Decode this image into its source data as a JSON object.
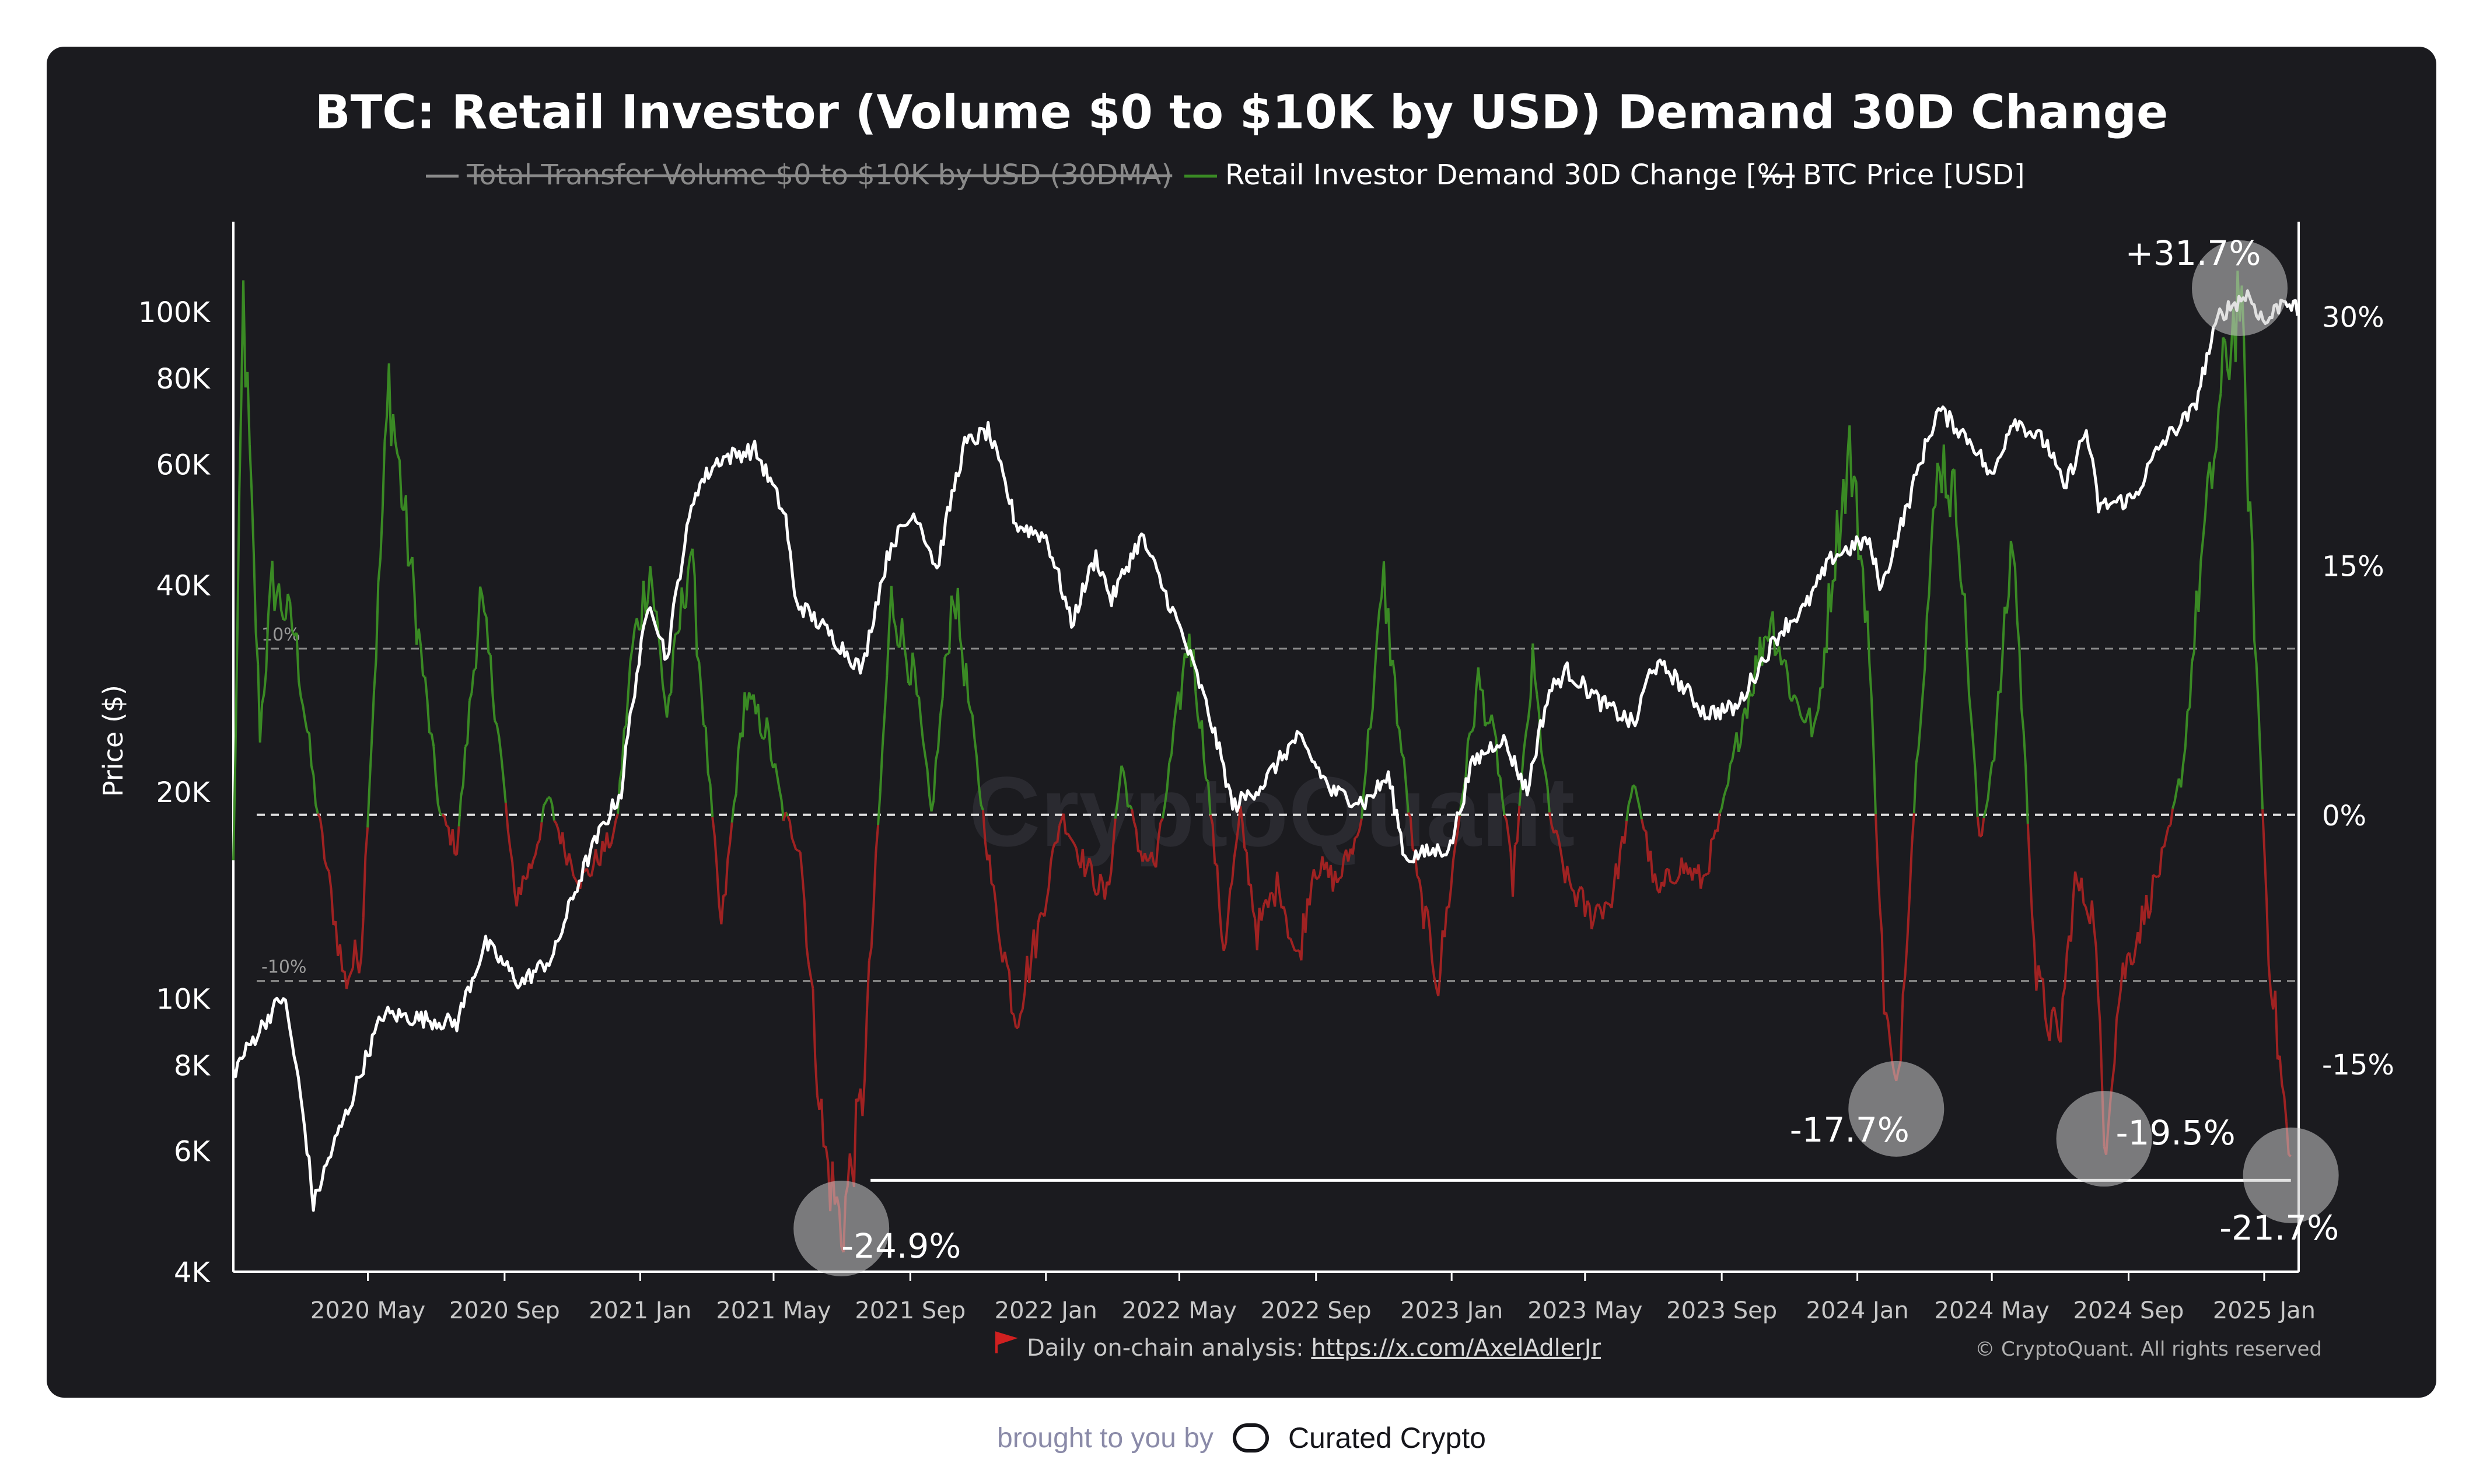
{
  "chart_data": {
    "type": "line",
    "title": "BTC: Retail Investor (Volume $0 to $10K by USD) Demand 30D Change",
    "legend": [
      {
        "label": "Total Transfer Volume $0 to $10K by USD (30DMA)",
        "color": "#8a8a8a",
        "hidden": true
      },
      {
        "label": "Retail Investor Demand 30D Change [%]",
        "color": "#3a8a24",
        "hidden": false
      },
      {
        "label": "BTC Price [USD]",
        "color": "#ffffff",
        "hidden": false
      }
    ],
    "ylabel_left": "Price ($)",
    "left_axis": {
      "scale": "log",
      "ylim": [
        4000,
        130000
      ],
      "ticks": [
        4000,
        6000,
        8000,
        10000,
        20000,
        40000,
        60000,
        80000,
        100000
      ],
      "tick_labels": [
        "4K",
        "6K",
        "8K",
        "10K",
        "20K",
        "40K",
        "60K",
        "80K",
        "100K"
      ]
    },
    "right_axis": {
      "scale": "linear",
      "ylim": [
        -27.5,
        35
      ],
      "ticks": [
        -15,
        0,
        15,
        30
      ],
      "tick_labels": [
        "-15%",
        "0%",
        "15%",
        "30%"
      ]
    },
    "x_axis": {
      "range": [
        "2020-01-01",
        "2025-02-01"
      ],
      "ticks": [
        {
          "date": "2020-05-01",
          "label": "2020 May"
        },
        {
          "date": "2020-09-01",
          "label": "2020 Sep"
        },
        {
          "date": "2021-01-01",
          "label": "2021 Jan"
        },
        {
          "date": "2021-05-01",
          "label": "2021 May"
        },
        {
          "date": "2021-09-01",
          "label": "2021 Sep"
        },
        {
          "date": "2022-01-01",
          "label": "2022 Jan"
        },
        {
          "date": "2022-05-01",
          "label": "2022 May"
        },
        {
          "date": "2022-09-01",
          "label": "2022 Sep"
        },
        {
          "date": "2023-01-01",
          "label": "2023 Jan"
        },
        {
          "date": "2023-05-01",
          "label": "2023 May"
        },
        {
          "date": "2023-09-01",
          "label": "2023 Sep"
        },
        {
          "date": "2024-01-01",
          "label": "2024 Jan"
        },
        {
          "date": "2024-05-01",
          "label": "2024 May"
        },
        {
          "date": "2024-09-01",
          "label": "2024 Sep"
        },
        {
          "date": "2025-01-01",
          "label": "2025 Jan"
        }
      ]
    },
    "reference_lines": [
      {
        "value": 10,
        "label": "10%"
      },
      {
        "value": -10,
        "label": "-10%"
      },
      {
        "value": 0,
        "label": ""
      }
    ],
    "series": [
      {
        "name": "BTC Price [USD]",
        "axis": "left",
        "color": "#ffffff",
        "points": [
          [
            "2020-01-01",
            7800
          ],
          [
            "2020-02-15",
            10100
          ],
          [
            "2020-03-13",
            5000
          ],
          [
            "2020-04-15",
            7000
          ],
          [
            "2020-05-15",
            9500
          ],
          [
            "2020-07-20",
            9200
          ],
          [
            "2020-08-15",
            12000
          ],
          [
            "2020-09-15",
            10500
          ],
          [
            "2020-10-15",
            11500
          ],
          [
            "2020-11-15",
            16000
          ],
          [
            "2020-12-15",
            20000
          ],
          [
            "2021-01-10",
            38000
          ],
          [
            "2021-01-25",
            31000
          ],
          [
            "2021-02-20",
            55000
          ],
          [
            "2021-03-13",
            61000
          ],
          [
            "2021-04-14",
            63000
          ],
          [
            "2021-05-12",
            50000
          ],
          [
            "2021-05-20",
            38000
          ],
          [
            "2021-06-20",
            34000
          ],
          [
            "2021-07-20",
            30000
          ],
          [
            "2021-08-15",
            46000
          ],
          [
            "2021-09-06",
            51000
          ],
          [
            "2021-09-25",
            42000
          ],
          [
            "2021-10-20",
            64000
          ],
          [
            "2021-11-10",
            67000
          ],
          [
            "2021-12-05",
            49000
          ],
          [
            "2022-01-01",
            47000
          ],
          [
            "2022-01-24",
            35000
          ],
          [
            "2022-02-15",
            44000
          ],
          [
            "2022-03-01",
            38000
          ],
          [
            "2022-03-28",
            47000
          ],
          [
            "2022-04-15",
            40000
          ],
          [
            "2022-05-15",
            30000
          ],
          [
            "2022-06-18",
            19000
          ],
          [
            "2022-07-15",
            20500
          ],
          [
            "2022-08-15",
            24000
          ],
          [
            "2022-09-15",
            20000
          ],
          [
            "2022-10-15",
            19300
          ],
          [
            "2022-11-05",
            21000
          ],
          [
            "2022-11-20",
            16000
          ],
          [
            "2022-12-31",
            16600
          ],
          [
            "2023-01-20",
            22000
          ],
          [
            "2023-02-15",
            24000
          ],
          [
            "2023-03-10",
            20000
          ],
          [
            "2023-03-30",
            28000
          ],
          [
            "2023-04-15",
            30000
          ],
          [
            "2023-05-15",
            27000
          ],
          [
            "2023-06-15",
            25000
          ],
          [
            "2023-06-30",
            30500
          ],
          [
            "2023-07-15",
            30000
          ],
          [
            "2023-08-17",
            26000
          ],
          [
            "2023-09-15",
            26500
          ],
          [
            "2023-10-25",
            34500
          ],
          [
            "2023-11-15",
            37000
          ],
          [
            "2023-12-10",
            44000
          ],
          [
            "2024-01-10",
            46500
          ],
          [
            "2024-01-23",
            39500
          ],
          [
            "2024-02-15",
            52000
          ],
          [
            "2024-03-14",
            72000
          ],
          [
            "2024-04-15",
            64000
          ],
          [
            "2024-05-01",
            57000
          ],
          [
            "2024-05-20",
            70000
          ],
          [
            "2024-06-20",
            64000
          ],
          [
            "2024-07-05",
            55000
          ],
          [
            "2024-07-25",
            67000
          ],
          [
            "2024-08-05",
            52000
          ],
          [
            "2024-09-06",
            53500
          ],
          [
            "2024-09-30",
            64000
          ],
          [
            "2024-10-30",
            72000
          ],
          [
            "2024-11-22",
            99000
          ],
          [
            "2024-12-17",
            106000
          ],
          [
            "2025-01-02",
            96000
          ],
          [
            "2025-01-20",
            105000
          ],
          [
            "2025-01-31",
            100000
          ]
        ]
      },
      {
        "name": "Retail Investor Demand 30D Change [%]",
        "axis": "right",
        "color_positive": "#3a8a24",
        "color_negative": "#a02222",
        "points": [
          [
            "2020-01-01",
            -3
          ],
          [
            "2020-01-10",
            31
          ],
          [
            "2020-01-25",
            5
          ],
          [
            "2020-02-05",
            14
          ],
          [
            "2020-02-25",
            11
          ],
          [
            "2020-03-15",
            1
          ],
          [
            "2020-04-10",
            -10
          ],
          [
            "2020-04-25",
            -8
          ],
          [
            "2020-05-20",
            26
          ],
          [
            "2020-06-10",
            14
          ],
          [
            "2020-07-05",
            0
          ],
          [
            "2020-07-20",
            -2
          ],
          [
            "2020-08-10",
            13
          ],
          [
            "2020-08-25",
            6
          ],
          [
            "2020-09-10",
            -5
          ],
          [
            "2020-09-25",
            -3
          ],
          [
            "2020-10-10",
            1
          ],
          [
            "2020-10-25",
            -2
          ],
          [
            "2020-11-10",
            -4
          ],
          [
            "2020-12-10",
            -1
          ],
          [
            "2020-12-25",
            10
          ],
          [
            "2021-01-10",
            15
          ],
          [
            "2021-01-25",
            6
          ],
          [
            "2021-02-15",
            16
          ],
          [
            "2021-03-15",
            -7
          ],
          [
            "2021-04-05",
            7
          ],
          [
            "2021-04-25",
            5
          ],
          [
            "2021-05-10",
            0
          ],
          [
            "2021-05-25",
            -2
          ],
          [
            "2021-06-15",
            -20
          ],
          [
            "2021-07-01",
            -25
          ],
          [
            "2021-07-20",
            -17
          ],
          [
            "2021-08-15",
            13
          ],
          [
            "2021-09-05",
            8
          ],
          [
            "2021-09-20",
            0
          ],
          [
            "2021-10-10",
            14
          ],
          [
            "2021-10-25",
            6
          ],
          [
            "2021-11-15",
            -5
          ],
          [
            "2021-12-05",
            -12
          ],
          [
            "2021-12-25",
            -7
          ],
          [
            "2022-01-15",
            0
          ],
          [
            "2022-02-05",
            -3
          ],
          [
            "2022-02-25",
            -5
          ],
          [
            "2022-03-10",
            3
          ],
          [
            "2022-03-25",
            -2
          ],
          [
            "2022-04-10",
            -3
          ],
          [
            "2022-05-10",
            11
          ],
          [
            "2022-05-25",
            3
          ],
          [
            "2022-06-10",
            -8
          ],
          [
            "2022-06-25",
            0
          ],
          [
            "2022-07-10",
            -7
          ],
          [
            "2022-07-30",
            -4
          ],
          [
            "2022-08-15",
            -9
          ],
          [
            "2022-08-30",
            -3
          ],
          [
            "2022-09-20",
            -4
          ],
          [
            "2022-10-10",
            -1
          ],
          [
            "2022-11-01",
            14
          ],
          [
            "2022-11-15",
            5
          ],
          [
            "2022-12-01",
            -4
          ],
          [
            "2022-12-20",
            -10
          ],
          [
            "2023-01-10",
            1
          ],
          [
            "2023-01-25",
            8
          ],
          [
            "2023-02-10",
            4
          ],
          [
            "2023-02-25",
            -4
          ],
          [
            "2023-03-15",
            9
          ],
          [
            "2023-03-30",
            0
          ],
          [
            "2023-04-15",
            -4
          ],
          [
            "2023-05-05",
            -6
          ],
          [
            "2023-05-25",
            -5
          ],
          [
            "2023-06-15",
            2
          ],
          [
            "2023-07-05",
            -5
          ],
          [
            "2023-07-25",
            -3
          ],
          [
            "2023-08-15",
            -4
          ],
          [
            "2023-09-01",
            0
          ],
          [
            "2023-09-20",
            6
          ],
          [
            "2023-10-15",
            12
          ],
          [
            "2023-11-05",
            7
          ],
          [
            "2023-11-25",
            5
          ],
          [
            "2023-12-10",
            15
          ],
          [
            "2023-12-25",
            22
          ],
          [
            "2024-01-10",
            12
          ],
          [
            "2024-01-25",
            -11
          ],
          [
            "2024-02-05",
            -17.7
          ],
          [
            "2024-02-25",
            5
          ],
          [
            "2024-03-15",
            22
          ],
          [
            "2024-04-01",
            18
          ],
          [
            "2024-04-20",
            -2
          ],
          [
            "2024-05-05",
            5
          ],
          [
            "2024-05-20",
            17
          ],
          [
            "2024-06-10",
            -10
          ],
          [
            "2024-06-30",
            -14
          ],
          [
            "2024-07-15",
            -4
          ],
          [
            "2024-08-01",
            -6
          ],
          [
            "2024-08-10",
            -19.5
          ],
          [
            "2024-08-25",
            -10
          ],
          [
            "2024-09-15",
            -6
          ],
          [
            "2024-10-05",
            -2
          ],
          [
            "2024-10-20",
            3
          ],
          [
            "2024-11-05",
            15
          ],
          [
            "2024-11-25",
            26
          ],
          [
            "2024-12-10",
            31.7
          ],
          [
            "2024-12-25",
            9
          ],
          [
            "2025-01-05",
            -8
          ],
          [
            "2025-01-15",
            -15
          ],
          [
            "2025-01-25",
            -21.7
          ]
        ]
      }
    ],
    "annotations": [
      {
        "label": "+31.7%",
        "date": "2024-12-10",
        "value": 31.7
      },
      {
        "label": "-24.9%",
        "date": "2021-07-01",
        "value": -24.9
      },
      {
        "label": "-17.7%",
        "date": "2024-02-05",
        "value": -17.7
      },
      {
        "label": "-19.5%",
        "date": "2024-08-10",
        "value": -19.5
      },
      {
        "label": "-21.7%",
        "date": "2025-01-25",
        "value": -21.7
      }
    ],
    "horizontal_marker": {
      "from": "2021-07-01",
      "to": "2025-01-25",
      "value": -22
    }
  },
  "watermark": "CryptoQuant",
  "source_note": "Daily on-chain analysis: ",
  "source_link": "https://x.com/AxelAdlerJr",
  "copyright": "© CryptoQuant. All rights reserved",
  "footer": {
    "brought_by": "brought to you by",
    "brand": "Curated Crypto"
  },
  "colors": {
    "card_bg": "#1b1b1f",
    "positive": "#3a8a24",
    "negative": "#a02222",
    "price": "#ffffff"
  }
}
